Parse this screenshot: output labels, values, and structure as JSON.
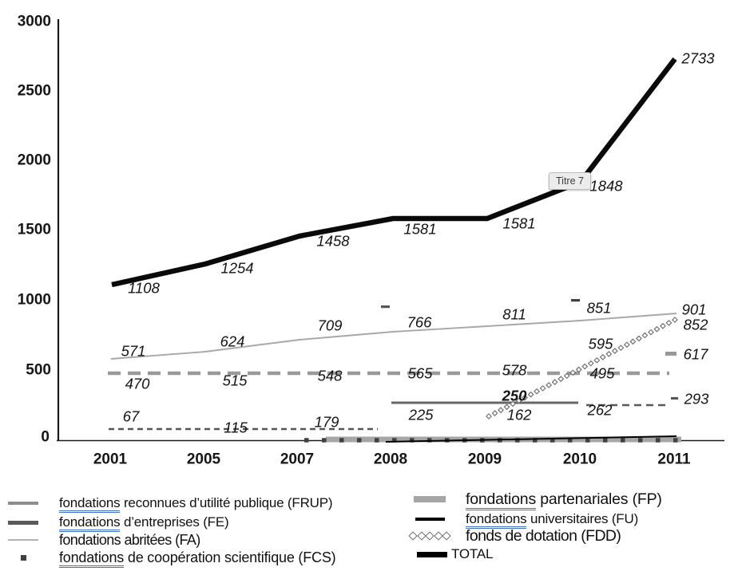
{
  "chart_data": {
    "type": "line",
    "title": "",
    "x_type": "category",
    "categories": [
      "2001",
      "2005",
      "2007",
      "2008",
      "2009",
      "2010",
      "2011"
    ],
    "y_ticks": [
      "3000",
      "2500",
      "2000",
      "1500",
      "1000",
      "500",
      "0"
    ],
    "ylim": [
      0,
      3000
    ],
    "grid": false,
    "legend_position": "bottom",
    "series": [
      {
        "id": "frup",
        "name": "fondations reconnues d'utilité publique (FRUP)",
        "style": "thick gray long-dash line",
        "values": [
          470,
          515,
          548,
          565,
          578,
          595,
          617
        ]
      },
      {
        "id": "fe",
        "name": "fondations d'entreprises (FE)",
        "style": "dark gray line: fine-dashed 2001-2008, solid 2008-2010, dashed 2010-2011",
        "values": [
          67,
          115,
          179,
          225,
          250,
          262,
          293
        ]
      },
      {
        "id": "fa",
        "name": "fondations abritées (FA)",
        "style": "thin light gray solid line",
        "values": [
          571,
          624,
          709,
          766,
          811,
          851,
          901
        ]
      },
      {
        "id": "fcs",
        "name": "fondations de coopération scientifique (FCS)",
        "style": "dark square-dot line near zero from 2007",
        "values": null
      },
      {
        "id": "fp",
        "name": "fondations partenariales (FP)",
        "style": "thick gray line near zero from 2007",
        "values": null
      },
      {
        "id": "fu",
        "name": "fondations universitaires (FU)",
        "style": "thin black line near zero from 2008",
        "values": null
      },
      {
        "id": "fdd",
        "name": "fonds de dotation (FDD)",
        "style": "open-diamond chain line from 2009",
        "values": [
          null,
          null,
          null,
          null,
          162,
          495,
          852
        ]
      },
      {
        "id": "total",
        "name": "TOTAL",
        "style": "thick black line",
        "values": [
          1108,
          1254,
          1458,
          1581,
          1581,
          1848,
          2733
        ]
      }
    ],
    "annotations": [
      {
        "text": "Titre 7",
        "near": "TOTAL point at 2010"
      }
    ]
  },
  "tooltip": {
    "text": "Titre 7"
  },
  "legend": {
    "items": [
      {
        "u": "fondations",
        "rest": " reconnues d’utilité publique (FRUP)"
      },
      {
        "u": "fondations",
        "rest": " d’entreprises (FE)"
      },
      {
        "u": "",
        "rest": "fondations abritées (FA)"
      },
      {
        "u": "fondations",
        "rest": " de coopération scientifique (FCS)"
      },
      {
        "u": "fondations",
        "rest": " partenariales (FP)"
      },
      {
        "u": "fondations",
        "rest": " universitaires (FU)"
      },
      {
        "u": "",
        "rest": "fonds de dotation (FDD)"
      },
      {
        "u": "",
        "rest": "TOTAL"
      }
    ]
  },
  "colors": {
    "total": "#0a0a0a",
    "fa": "#a8a8a8",
    "frup": "#999999",
    "fe": "#595959",
    "fp": "#a6a6a6",
    "fcs": "#404040",
    "fu": "#000000",
    "fdd_stroke": "#6e6e6e",
    "underline": "#4472c4",
    "tooltip_bg": "#ececec"
  }
}
